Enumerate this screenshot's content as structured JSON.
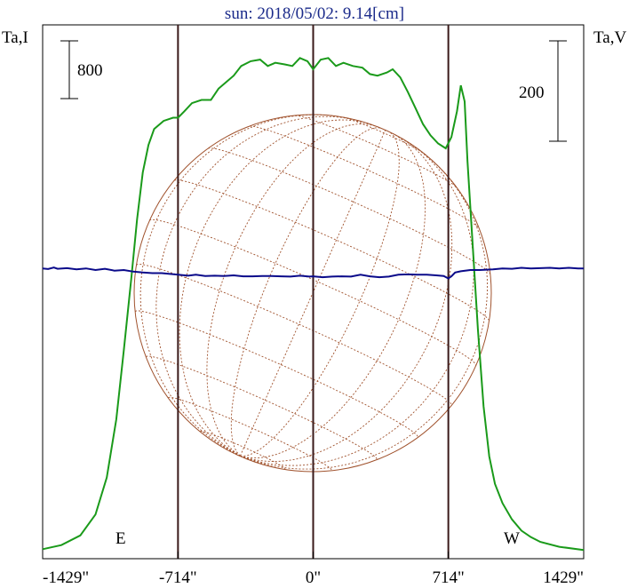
{
  "title": "sun: 2018/05/02: 9.14[cm]",
  "left_axis_label": "Ta,I",
  "right_axis_label": "Ta,V",
  "left_scale_label": "800",
  "right_scale_label": "200",
  "east_label": "E",
  "west_label": "W",
  "colors": {
    "intensity": "#1a9a1a",
    "polarization": "#0a0a8a",
    "disk": "#a0522d",
    "limb_lines": "#3a1a1a",
    "title": "#1a2a8a"
  },
  "chart_data": {
    "type": "line",
    "title": "sun: 2018/05/02: 9.14[cm]",
    "xlabel": "",
    "ylabel_left": "Ta,I",
    "ylabel_right": "Ta,V",
    "x_ticks": [
      {
        "value": -1429,
        "label": "-1429\""
      },
      {
        "value": -714,
        "label": "-714\""
      },
      {
        "value": 0,
        "label": "0\""
      },
      {
        "value": 714,
        "label": "714\""
      },
      {
        "value": 1429,
        "label": "1429\""
      }
    ],
    "xlim": [
      -1429,
      1429
    ],
    "limb_positions": [
      -714,
      0,
      714
    ],
    "scale_bars": {
      "intensity": 800,
      "polarization": 200
    },
    "series": [
      {
        "name": "Ta,I",
        "color": "#1a9a1a",
        "ylim": [
          0,
          3100
        ],
        "points": [
          [
            -1429,
            15
          ],
          [
            -1330,
            40
          ],
          [
            -1230,
            100
          ],
          [
            -1150,
            230
          ],
          [
            -1090,
            460
          ],
          [
            -1040,
            820
          ],
          [
            -1000,
            1250
          ],
          [
            -960,
            1700
          ],
          [
            -930,
            2060
          ],
          [
            -900,
            2350
          ],
          [
            -870,
            2520
          ],
          [
            -840,
            2620
          ],
          [
            -790,
            2670
          ],
          [
            -740,
            2690
          ],
          [
            -714,
            2690
          ],
          [
            -680,
            2730
          ],
          [
            -640,
            2780
          ],
          [
            -590,
            2800
          ],
          [
            -540,
            2800
          ],
          [
            -500,
            2870
          ],
          [
            -460,
            2910
          ],
          [
            -420,
            2950
          ],
          [
            -380,
            3010
          ],
          [
            -330,
            3040
          ],
          [
            -280,
            3050
          ],
          [
            -240,
            3010
          ],
          [
            -200,
            3030
          ],
          [
            -150,
            3020
          ],
          [
            -110,
            3010
          ],
          [
            -70,
            3060
          ],
          [
            -30,
            3040
          ],
          [
            0,
            2990
          ],
          [
            40,
            3050
          ],
          [
            80,
            3060
          ],
          [
            120,
            3010
          ],
          [
            160,
            3030
          ],
          [
            210,
            3010
          ],
          [
            260,
            3000
          ],
          [
            300,
            2960
          ],
          [
            340,
            2950
          ],
          [
            390,
            2970
          ],
          [
            420,
            2990
          ],
          [
            460,
            2940
          ],
          [
            500,
            2850
          ],
          [
            540,
            2750
          ],
          [
            580,
            2650
          ],
          [
            620,
            2580
          ],
          [
            660,
            2530
          ],
          [
            700,
            2500
          ],
          [
            730,
            2570
          ],
          [
            760,
            2730
          ],
          [
            780,
            2890
          ],
          [
            800,
            2790
          ],
          [
            815,
            2420
          ],
          [
            840,
            1950
          ],
          [
            870,
            1380
          ],
          [
            900,
            900
          ],
          [
            930,
            590
          ],
          [
            960,
            420
          ],
          [
            1000,
            300
          ],
          [
            1050,
            200
          ],
          [
            1100,
            130
          ],
          [
            1150,
            90
          ],
          [
            1200,
            60
          ],
          [
            1300,
            30
          ],
          [
            1429,
            10
          ]
        ]
      },
      {
        "name": "Ta,V",
        "color": "#0a0a8a",
        "ylim": [
          -150,
          730
        ],
        "points": [
          [
            -1429,
            5
          ],
          [
            -1400,
            3
          ],
          [
            -1370,
            8
          ],
          [
            -1350,
            4
          ],
          [
            -1300,
            6
          ],
          [
            -1250,
            2
          ],
          [
            -1200,
            5
          ],
          [
            -1150,
            0
          ],
          [
            -1100,
            4
          ],
          [
            -1050,
            -2
          ],
          [
            -1000,
            0
          ],
          [
            -950,
            -5
          ],
          [
            -900,
            -8
          ],
          [
            -850,
            -10
          ],
          [
            -800,
            -10
          ],
          [
            -714,
            -15
          ],
          [
            -660,
            -18
          ],
          [
            -620,
            -15
          ],
          [
            -570,
            -19
          ],
          [
            -520,
            -18
          ],
          [
            -470,
            -19
          ],
          [
            -420,
            -17
          ],
          [
            -370,
            -20
          ],
          [
            -320,
            -20
          ],
          [
            -270,
            -19
          ],
          [
            -220,
            -19
          ],
          [
            -170,
            -20
          ],
          [
            -120,
            -21
          ],
          [
            -70,
            -18
          ],
          [
            -20,
            -21
          ],
          [
            0,
            -20
          ],
          [
            50,
            -23
          ],
          [
            100,
            -21
          ],
          [
            150,
            -20
          ],
          [
            200,
            -21
          ],
          [
            250,
            -15
          ],
          [
            300,
            -20
          ],
          [
            350,
            -23
          ],
          [
            400,
            -21
          ],
          [
            450,
            -15
          ],
          [
            500,
            -14
          ],
          [
            550,
            -15
          ],
          [
            600,
            -15
          ],
          [
            650,
            -17
          ],
          [
            690,
            -19
          ],
          [
            714,
            -27
          ],
          [
            730,
            -20
          ],
          [
            750,
            -8
          ],
          [
            780,
            -4
          ],
          [
            830,
            0
          ],
          [
            880,
            0
          ],
          [
            950,
            2
          ],
          [
            1000,
            5
          ],
          [
            1050,
            4
          ],
          [
            1100,
            7
          ],
          [
            1150,
            5
          ],
          [
            1200,
            6
          ],
          [
            1250,
            7
          ],
          [
            1300,
            5
          ],
          [
            1350,
            7
          ],
          [
            1400,
            5
          ],
          [
            1429,
            5
          ]
        ]
      }
    ]
  }
}
